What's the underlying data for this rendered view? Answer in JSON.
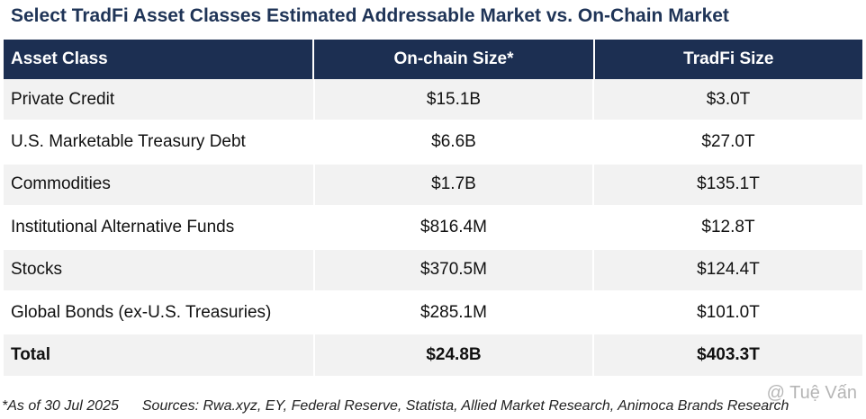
{
  "title": "Select TradFi Asset Classes Estimated Addressable Market vs. On-Chain Market",
  "table": {
    "headers": [
      "Asset Class",
      "On-chain Size*",
      "TradFi Size"
    ],
    "rows": [
      [
        "Private Credit",
        "$15.1B",
        "$3.0T"
      ],
      [
        "U.S. Marketable Treasury Debt",
        "$6.6B",
        "$27.0T"
      ],
      [
        "Commodities",
        "$1.7B",
        "$135.1T"
      ],
      [
        "Institutional Alternative Funds",
        "$816.4M",
        "$12.8T"
      ],
      [
        "Stocks",
        "$370.5M",
        "$124.4T"
      ],
      [
        "Global Bonds (ex-U.S. Treasuries)",
        "$285.1M",
        "$101.0T"
      ],
      [
        "Total",
        "$24.8B",
        "$403.3T"
      ]
    ]
  },
  "footer": {
    "note": "*As of 30 Jul 2025",
    "sources": "Sources: Rwa.xyz, EY, Federal Reserve, Statista, Allied Market Research, Animoca Brands Research"
  },
  "watermark": "@ Tuệ Vấn",
  "colors": {
    "title": "#1f3457",
    "header_bg": "#1c2f52",
    "row_alt": "#f2f2f2"
  }
}
